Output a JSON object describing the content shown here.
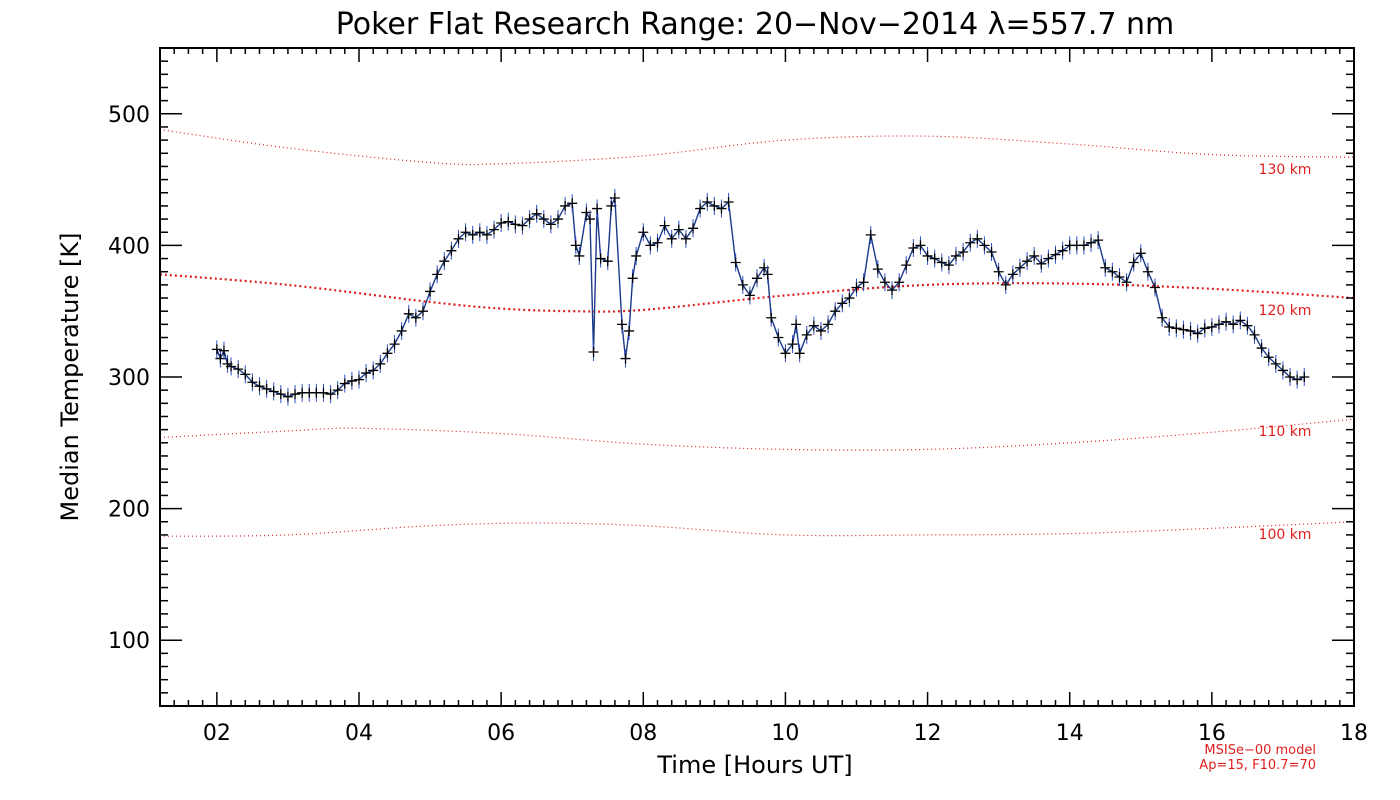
{
  "chart_data": {
    "type": "line",
    "title": "Poker Flat Research Range: 20−Nov−2014 λ=557.7 nm",
    "xlabel": "Time [Hours UT]",
    "ylabel": "Median Temperature [K]",
    "xlim": [
      1.2,
      18.0
    ],
    "ylim": [
      50,
      550
    ],
    "x_ticks": [
      2,
      4,
      6,
      8,
      10,
      12,
      14,
      16,
      18
    ],
    "x_tick_labels": [
      "02",
      "04",
      "06",
      "08",
      "10",
      "12",
      "14",
      "16",
      "18"
    ],
    "y_ticks": [
      100,
      200,
      300,
      400,
      500
    ],
    "y_tick_labels": [
      "100",
      "200",
      "300",
      "400",
      "500"
    ],
    "grid": false,
    "series": [
      {
        "color": "#1b3a8a",
        "marker": "plus",
        "x": [
          2.0,
          2.05,
          2.1,
          2.15,
          2.2,
          2.3,
          2.4,
          2.5,
          2.6,
          2.7,
          2.8,
          2.9,
          3.0,
          3.1,
          3.2,
          3.3,
          3.4,
          3.5,
          3.6,
          3.7,
          3.8,
          3.9,
          4.0,
          4.1,
          4.2,
          4.3,
          4.4,
          4.5,
          4.6,
          4.7,
          4.8,
          4.9,
          5.0,
          5.1,
          5.2,
          5.3,
          5.4,
          5.5,
          5.6,
          5.7,
          5.8,
          5.9,
          6.0,
          6.1,
          6.2,
          6.3,
          6.4,
          6.5,
          6.6,
          6.7,
          6.8,
          6.9,
          7.0,
          7.05,
          7.1,
          7.2,
          7.25,
          7.3,
          7.35,
          7.4,
          7.5,
          7.55,
          7.6,
          7.7,
          7.75,
          7.8,
          7.85,
          7.9,
          8.0,
          8.1,
          8.2,
          8.3,
          8.4,
          8.5,
          8.6,
          8.7,
          8.8,
          8.9,
          9.0,
          9.1,
          9.2,
          9.3,
          9.4,
          9.5,
          9.6,
          9.7,
          9.75,
          9.8,
          9.9,
          10.0,
          10.1,
          10.15,
          10.2,
          10.3,
          10.4,
          10.5,
          10.6,
          10.7,
          10.8,
          10.9,
          11.0,
          11.1,
          11.2,
          11.3,
          11.4,
          11.5,
          11.6,
          11.7,
          11.8,
          11.9,
          12.0,
          12.1,
          12.2,
          12.3,
          12.4,
          12.5,
          12.6,
          12.7,
          12.8,
          12.9,
          13.0,
          13.1,
          13.2,
          13.3,
          13.4,
          13.5,
          13.6,
          13.7,
          13.8,
          13.9,
          14.0,
          14.1,
          14.2,
          14.3,
          14.4,
          14.5,
          14.6,
          14.7,
          14.8,
          14.9,
          15.0,
          15.1,
          15.2,
          15.3,
          15.4,
          15.5,
          15.6,
          15.7,
          15.8,
          15.9,
          16.0,
          16.1,
          16.2,
          16.3,
          16.4,
          16.5,
          16.6,
          16.7,
          16.8,
          16.9,
          17.0,
          17.1,
          17.2,
          17.3
        ],
        "y": [
          321,
          314,
          320,
          310,
          308,
          306,
          302,
          296,
          293,
          291,
          289,
          287,
          285,
          287,
          288,
          288,
          288,
          288,
          287,
          290,
          295,
          297,
          298,
          303,
          305,
          310,
          318,
          325,
          335,
          348,
          345,
          350,
          365,
          378,
          388,
          396,
          405,
          410,
          408,
          410,
          408,
          412,
          417,
          418,
          416,
          415,
          420,
          424,
          420,
          416,
          420,
          430,
          432,
          400,
          392,
          425,
          420,
          319,
          428,
          390,
          388,
          430,
          436,
          340,
          314,
          335,
          375,
          392,
          410,
          400,
          402,
          415,
          405,
          412,
          405,
          413,
          428,
          433,
          430,
          428,
          433,
          387,
          370,
          362,
          375,
          383,
          378,
          345,
          330,
          318,
          325,
          340,
          318,
          332,
          339,
          335,
          340,
          350,
          356,
          360,
          368,
          372,
          408,
          382,
          372,
          366,
          372,
          385,
          398,
          400,
          392,
          390,
          387,
          385,
          392,
          395,
          402,
          405,
          400,
          395,
          380,
          370,
          378,
          383,
          388,
          392,
          386,
          390,
          393,
          396,
          400,
          400,
          400,
          402,
          404,
          383,
          380,
          376,
          372,
          387,
          394,
          380,
          368,
          345,
          338,
          337,
          336,
          335,
          333,
          337,
          338,
          340,
          342,
          340,
          343,
          339,
          332,
          322,
          315,
          310,
          305,
          300,
          298,
          300
        ]
      }
    ],
    "model_curves": [
      {
        "name": "130 km",
        "x": [
          1.2,
          3.0,
          5.0,
          6.0,
          8.0,
          10.0,
          12.0,
          14.0,
          16.0,
          18.0
        ],
        "y": [
          488,
          474,
          463,
          462,
          468,
          480,
          483,
          477,
          469,
          467
        ]
      },
      {
        "name": "120 km",
        "x": [
          1.2,
          3.0,
          5.0,
          6.0,
          7.0,
          8.0,
          10.0,
          12.0,
          14.0,
          16.0,
          18.0
        ],
        "y": [
          378,
          370,
          357,
          352,
          350,
          351,
          362,
          370,
          371,
          367,
          360
        ]
      },
      {
        "name": "110 km",
        "x": [
          1.2,
          3.0,
          4.0,
          6.0,
          8.0,
          10.0,
          12.0,
          14.0,
          16.0,
          18.0
        ],
        "y": [
          254,
          259,
          261,
          257,
          249,
          245,
          245,
          250,
          258,
          268
        ]
      },
      {
        "name": "100 km",
        "x": [
          1.2,
          3.0,
          5.0,
          6.5,
          8.0,
          10.0,
          12.0,
          14.0,
          16.0,
          18.0
        ],
        "y": [
          179,
          180,
          187,
          189,
          187,
          180,
          180,
          181,
          185,
          190
        ]
      }
    ],
    "model_labels": [
      "130 km",
      "120 km",
      "110 km",
      "100 km"
    ],
    "annotation": [
      "MSISe−00 model",
      "Ap=15, F10.7=70"
    ],
    "model_color": "#e02020"
  }
}
